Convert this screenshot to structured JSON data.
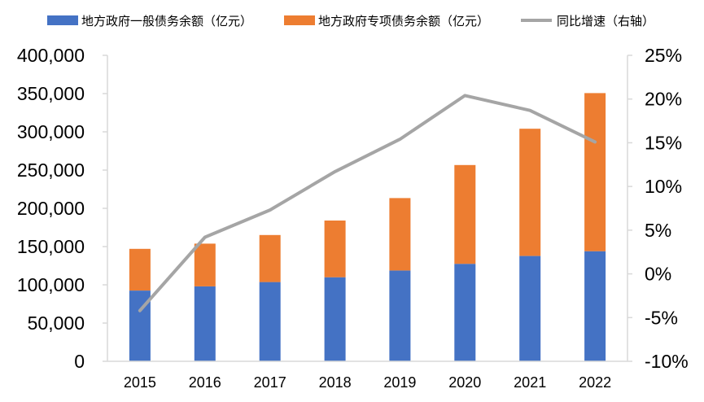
{
  "chart_data": {
    "type": "bar",
    "stacked": true,
    "categories": [
      "2015",
      "2016",
      "2017",
      "2018",
      "2019",
      "2020",
      "2021",
      "2022"
    ],
    "series": [
      {
        "name": "地方政府一般债务余额（亿元）",
        "type": "bar",
        "axis": "left",
        "color": "#4472C4",
        "values": [
          92500,
          98000,
          103600,
          109900,
          118700,
          127400,
          137700,
          143900
        ]
      },
      {
        "name": "地方政府专项债务余额（亿元）",
        "type": "bar",
        "axis": "left",
        "color": "#ED7D31",
        "values": [
          54500,
          55800,
          61500,
          74100,
          94700,
          129200,
          166300,
          206700
        ]
      },
      {
        "name": "同比增速（右轴）",
        "type": "line",
        "axis": "right",
        "color": "#A5A5A5",
        "values": [
          -4.2,
          4.2,
          7.3,
          11.7,
          15.4,
          20.4,
          18.7,
          15.1
        ]
      }
    ],
    "ylim": [
      0,
      400000
    ],
    "y2lim": [
      -10,
      25
    ],
    "yticks": [
      "0",
      "50,000",
      "100,000",
      "150,000",
      "200,000",
      "250,000",
      "300,000",
      "350,000",
      "400,000"
    ],
    "y2ticks": [
      "-10%",
      "-5%",
      "0%",
      "5%",
      "10%",
      "15%",
      "20%",
      "25%"
    ],
    "legend_position": "top",
    "grid": false
  }
}
